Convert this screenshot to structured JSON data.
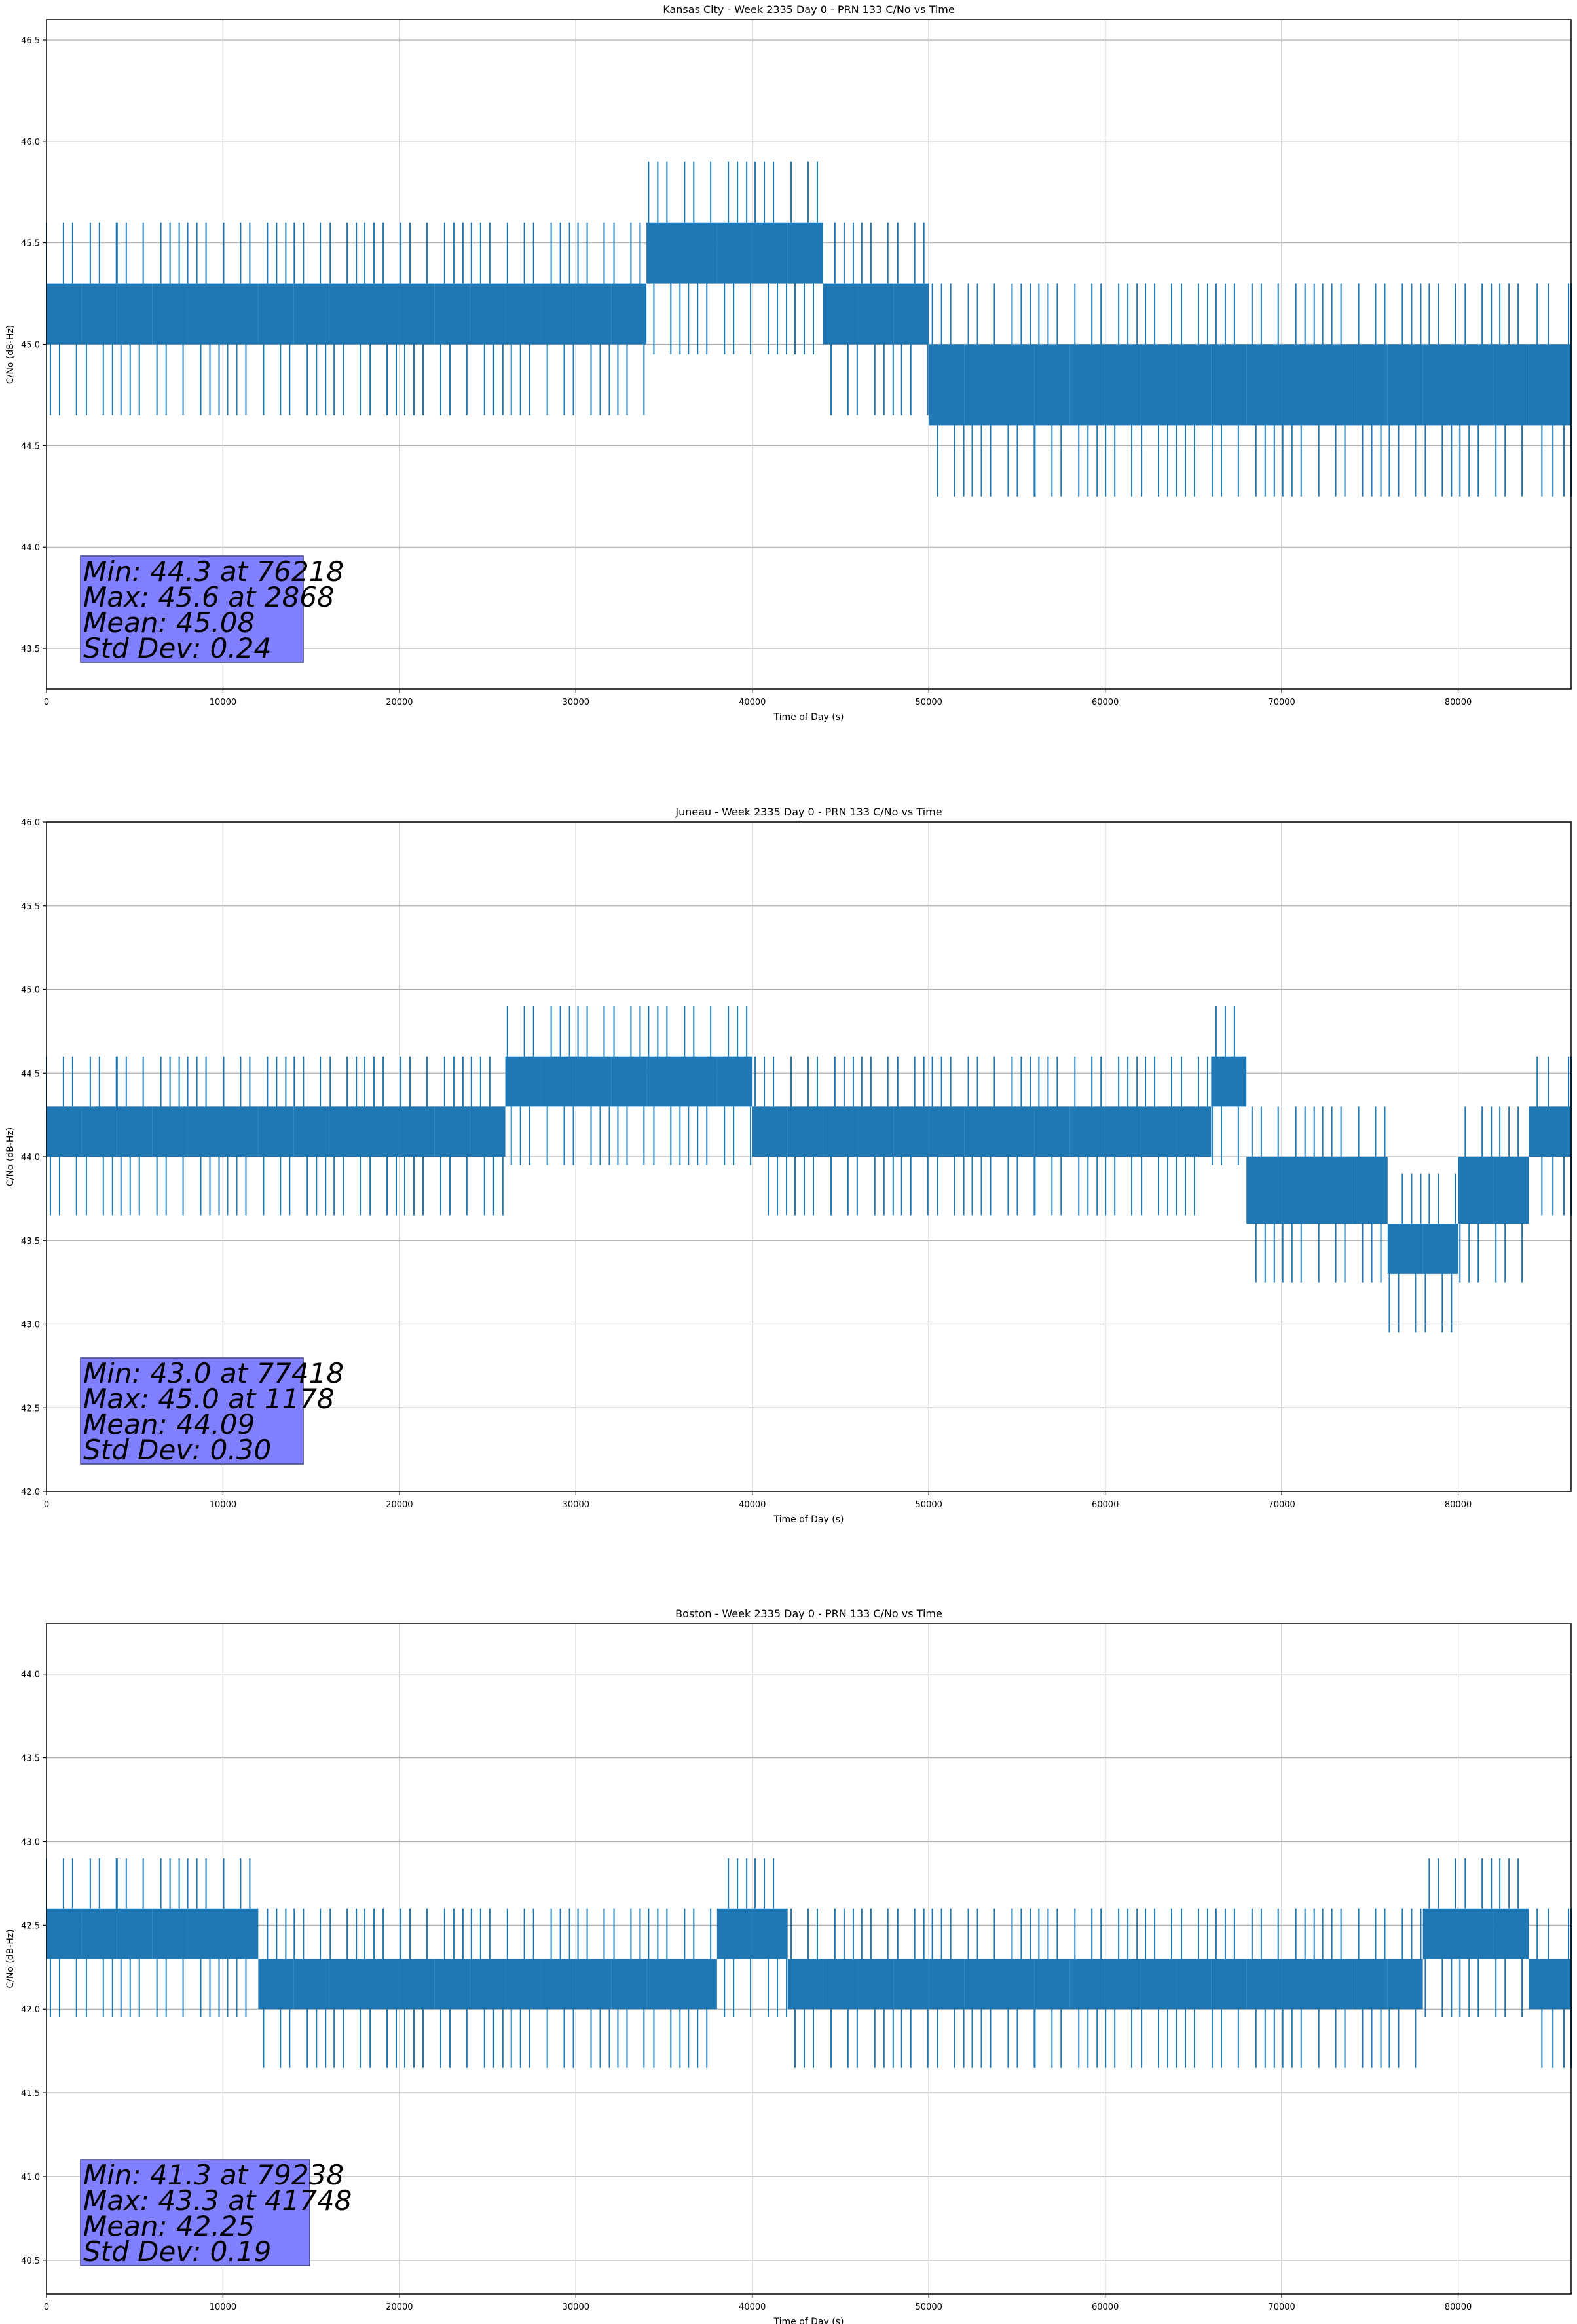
{
  "chart_data": [
    {
      "type": "line",
      "title": "Kansas City - Week 2335 Day 0 - PRN 133 C/No vs Time",
      "xlabel": "Time of Day (s)",
      "ylabel": "C/No (dB-Hz)",
      "xlim": [
        0,
        86400
      ],
      "ylim": [
        43.3,
        46.6
      ],
      "xticks": [
        0,
        10000,
        20000,
        30000,
        40000,
        50000,
        60000,
        70000,
        80000
      ],
      "yticks": [
        43.5,
        44.0,
        44.5,
        45.0,
        45.5,
        46.0,
        46.5
      ],
      "ytick_labels": [
        "43.5",
        "44.0",
        "44.5",
        "45.0",
        "45.5",
        "46.0",
        "46.5"
      ],
      "grid": true,
      "line_color": "#1f77b4",
      "stats_box_color": "#8080ff",
      "stats": [
        "Min: 44.3 at 76218",
        "Max: 45.6 at 2868",
        "Mean: 45.08",
        "Std Dev: 0.24"
      ],
      "series": [
        {
          "x": [
            0,
            2000,
            4000,
            6000,
            8000,
            10000,
            12000,
            14000,
            16000,
            18000,
            20000,
            22000,
            24000,
            26000,
            28000,
            30000,
            32000,
            34000,
            36000,
            38000,
            40000,
            42000,
            44000,
            46000,
            48000,
            50000,
            52000,
            54000,
            56000,
            58000,
            60000,
            62000,
            64000,
            66000,
            68000,
            70000,
            72000,
            74000,
            76000,
            78000,
            80000,
            82000,
            84000,
            86400
          ],
          "low": [
            45.0,
            45.0,
            45.0,
            45.0,
            45.0,
            45.0,
            45.0,
            45.0,
            45.0,
            45.0,
            45.0,
            45.0,
            45.0,
            45.0,
            45.0,
            45.0,
            45.0,
            45.3,
            45.3,
            45.3,
            45.3,
            45.3,
            45.0,
            45.0,
            45.0,
            44.6,
            44.6,
            44.6,
            44.6,
            44.6,
            44.6,
            44.6,
            44.6,
            44.6,
            44.6,
            44.6,
            44.6,
            44.6,
            44.6,
            44.6,
            44.6,
            44.6,
            44.6,
            44.6
          ],
          "high": [
            45.3,
            45.3,
            45.3,
            45.3,
            45.3,
            45.3,
            45.3,
            45.3,
            45.3,
            45.3,
            45.3,
            45.3,
            45.3,
            45.3,
            45.3,
            45.3,
            45.3,
            45.6,
            45.6,
            45.6,
            45.6,
            45.6,
            45.3,
            45.3,
            45.3,
            45.0,
            45.0,
            45.0,
            45.0,
            45.0,
            45.0,
            45.0,
            45.0,
            45.0,
            45.0,
            45.0,
            45.0,
            45.0,
            45.0,
            45.0,
            45.0,
            45.0,
            45.0,
            45.0
          ]
        }
      ]
    },
    {
      "type": "line",
      "title": "Juneau - Week 2335 Day 0 - PRN 133 C/No vs Time",
      "xlabel": "Time of Day (s)",
      "ylabel": "C/No (dB-Hz)",
      "xlim": [
        0,
        86400
      ],
      "ylim": [
        42.0,
        46.0
      ],
      "xticks": [
        0,
        10000,
        20000,
        30000,
        40000,
        50000,
        60000,
        70000,
        80000
      ],
      "yticks": [
        42.0,
        42.5,
        43.0,
        43.5,
        44.0,
        44.5,
        45.0,
        45.5,
        46.0
      ],
      "ytick_labels": [
        "42.0",
        "42.5",
        "43.0",
        "43.5",
        "44.0",
        "44.5",
        "45.0",
        "45.5",
        "46.0"
      ],
      "grid": true,
      "line_color": "#1f77b4",
      "stats_box_color": "#8080ff",
      "stats": [
        "Min: 43.0 at 77418",
        "Max: 45.0 at 1178",
        "Mean: 44.09",
        "Std Dev: 0.30"
      ],
      "series": [
        {
          "x": [
            0,
            2000,
            4000,
            6000,
            8000,
            10000,
            12000,
            14000,
            16000,
            18000,
            20000,
            22000,
            24000,
            26000,
            28000,
            30000,
            32000,
            34000,
            36000,
            38000,
            40000,
            42000,
            44000,
            46000,
            48000,
            50000,
            52000,
            54000,
            56000,
            58000,
            60000,
            62000,
            64000,
            66000,
            68000,
            70000,
            72000,
            74000,
            76000,
            78000,
            80000,
            82000,
            84000,
            86400
          ],
          "low": [
            44.0,
            44.0,
            44.0,
            44.0,
            44.0,
            44.0,
            44.0,
            44.0,
            44.0,
            44.0,
            44.0,
            44.0,
            44.0,
            44.3,
            44.3,
            44.3,
            44.3,
            44.3,
            44.3,
            44.3,
            44.0,
            44.0,
            44.0,
            44.0,
            44.0,
            44.0,
            44.0,
            44.0,
            44.0,
            44.0,
            44.0,
            44.0,
            44.0,
            44.3,
            43.6,
            43.6,
            43.6,
            43.6,
            43.3,
            43.3,
            43.6,
            43.6,
            44.0,
            44.0
          ],
          "high": [
            44.3,
            44.3,
            44.3,
            44.3,
            44.3,
            44.3,
            44.3,
            44.3,
            44.3,
            44.3,
            44.3,
            44.3,
            44.3,
            44.6,
            44.6,
            44.6,
            44.6,
            44.6,
            44.6,
            44.6,
            44.3,
            44.3,
            44.3,
            44.3,
            44.3,
            44.3,
            44.3,
            44.3,
            44.3,
            44.3,
            44.3,
            44.3,
            44.3,
            44.6,
            44.0,
            44.0,
            44.0,
            44.0,
            43.6,
            43.6,
            44.0,
            44.0,
            44.3,
            44.3
          ]
        }
      ]
    },
    {
      "type": "line",
      "title": "Boston - Week 2335 Day 0 - PRN 133 C/No vs Time",
      "xlabel": "Time of Day (s)",
      "ylabel": "C/No (dB-Hz)",
      "xlim": [
        0,
        86400
      ],
      "ylim": [
        40.3,
        44.3
      ],
      "xticks": [
        0,
        10000,
        20000,
        30000,
        40000,
        50000,
        60000,
        70000,
        80000
      ],
      "yticks": [
        40.5,
        41.0,
        41.5,
        42.0,
        42.5,
        43.0,
        43.5,
        44.0
      ],
      "ytick_labels": [
        "40.5",
        "41.0",
        "41.5",
        "42.0",
        "42.5",
        "43.0",
        "43.5",
        "44.0"
      ],
      "grid": true,
      "line_color": "#1f77b4",
      "stats_box_color": "#8080ff",
      "stats": [
        "Min: 41.3 at 79238",
        "Max: 43.3 at 41748",
        "Mean: 42.25",
        "Std Dev: 0.19"
      ],
      "series": [
        {
          "x": [
            0,
            2000,
            4000,
            6000,
            8000,
            10000,
            12000,
            14000,
            16000,
            18000,
            20000,
            22000,
            24000,
            26000,
            28000,
            30000,
            32000,
            34000,
            36000,
            38000,
            40000,
            42000,
            44000,
            46000,
            48000,
            50000,
            52000,
            54000,
            56000,
            58000,
            60000,
            62000,
            64000,
            66000,
            68000,
            70000,
            72000,
            74000,
            76000,
            78000,
            80000,
            82000,
            84000,
            86400
          ],
          "low": [
            42.3,
            42.3,
            42.3,
            42.3,
            42.3,
            42.3,
            42.0,
            42.0,
            42.0,
            42.0,
            42.0,
            42.0,
            42.0,
            42.0,
            42.0,
            42.0,
            42.0,
            42.0,
            42.0,
            42.3,
            42.3,
            42.0,
            42.0,
            42.0,
            42.0,
            42.0,
            42.0,
            42.0,
            42.0,
            42.0,
            42.0,
            42.0,
            42.0,
            42.0,
            42.0,
            42.0,
            42.0,
            42.0,
            42.0,
            42.3,
            42.3,
            42.3,
            42.0,
            42.0
          ],
          "high": [
            42.6,
            42.6,
            42.6,
            42.6,
            42.6,
            42.6,
            42.3,
            42.3,
            42.3,
            42.3,
            42.3,
            42.3,
            42.3,
            42.3,
            42.3,
            42.3,
            42.3,
            42.3,
            42.3,
            42.6,
            42.6,
            42.3,
            42.3,
            42.3,
            42.3,
            42.3,
            42.3,
            42.3,
            42.3,
            42.3,
            42.3,
            42.3,
            42.3,
            42.3,
            42.3,
            42.3,
            42.3,
            42.3,
            42.3,
            42.6,
            42.6,
            42.6,
            42.3,
            42.3
          ]
        }
      ]
    }
  ]
}
